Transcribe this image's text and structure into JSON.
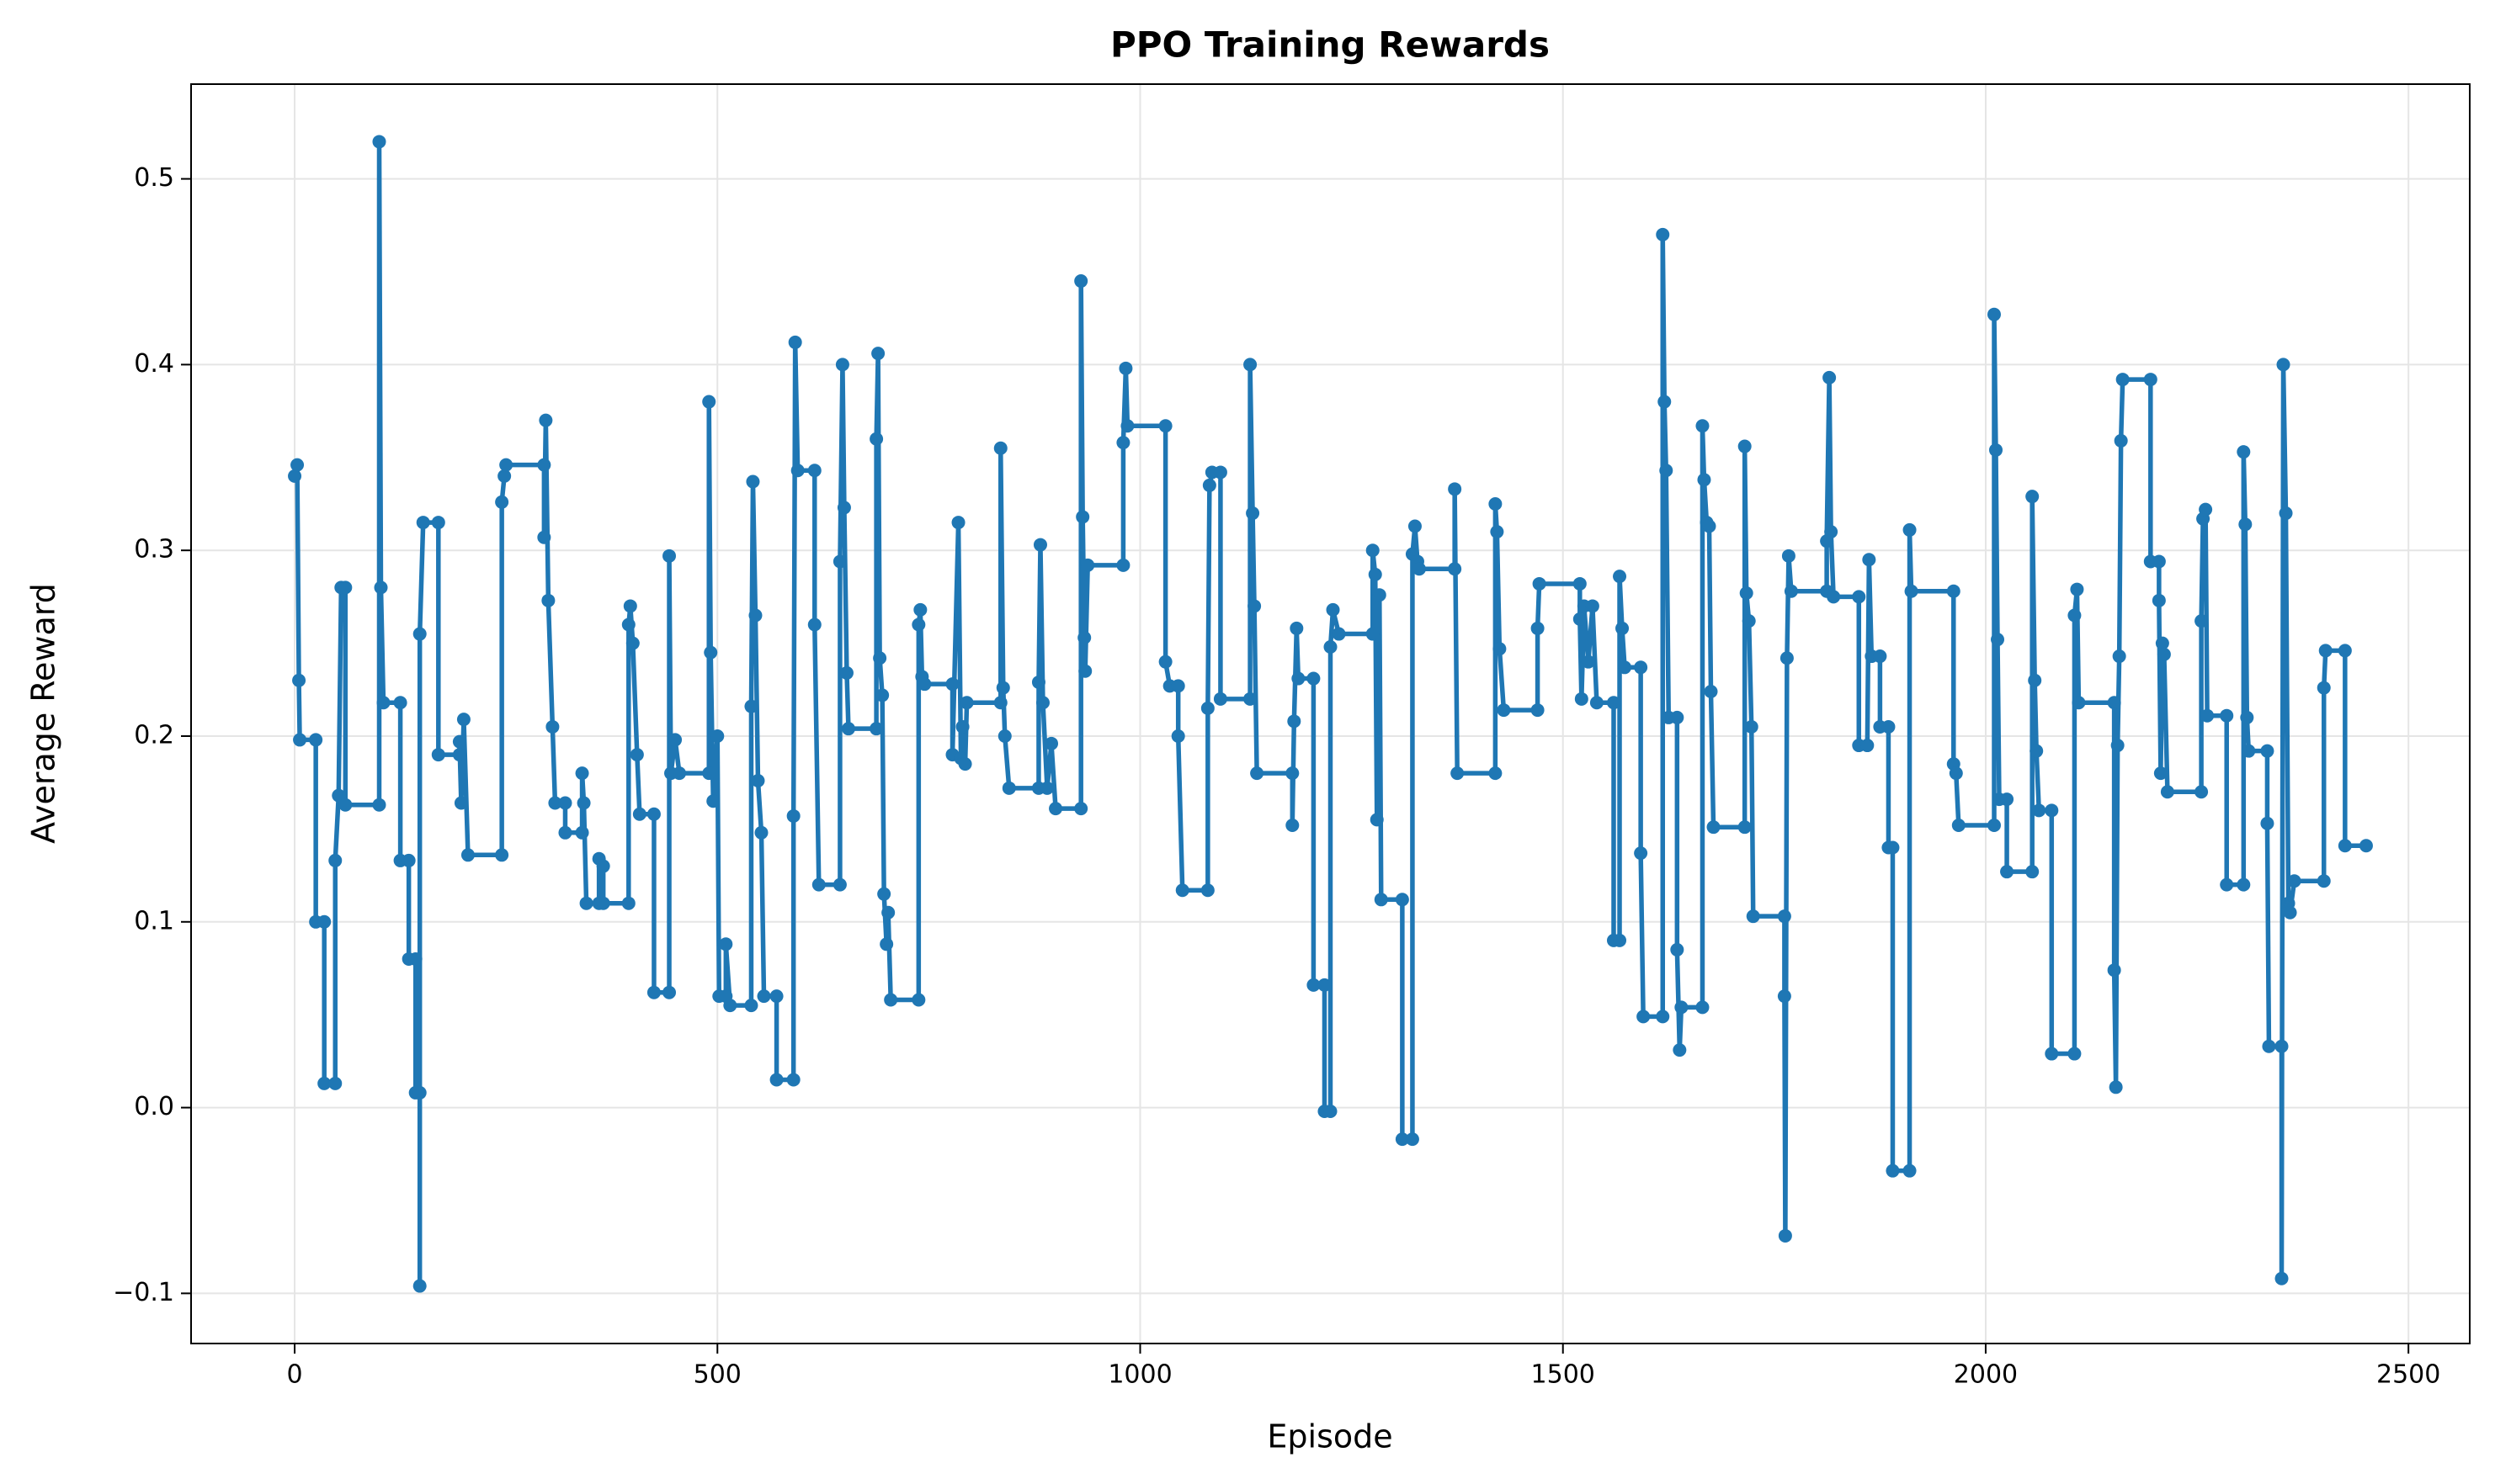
{
  "chart_data": {
    "type": "line",
    "title": "PPO Training Rewards",
    "x_label": "Episode",
    "y_label": "Average Reward",
    "color": "#1f77b4",
    "grid": true,
    "markers": true,
    "xlim": [
      -122.5,
      2572.5
    ],
    "xticks": [
      0,
      500,
      1000,
      1500,
      2000,
      2500
    ],
    "ylim": [
      -0.127,
      0.551
    ],
    "yticks": [
      {
        "value": -0.1,
        "label": "−0.1"
      },
      {
        "value": 0,
        "label": "0.0"
      },
      0.1,
      0.2,
      0.3,
      0.4,
      0.5
    ],
    "x": [
      0,
      3,
      5,
      6,
      25,
      25,
      35,
      35,
      48,
      48,
      52,
      55,
      60,
      60,
      100,
      100,
      102,
      105,
      125,
      125,
      135,
      135,
      143,
      143,
      148,
      148,
      148,
      152,
      170,
      170,
      195,
      195,
      197,
      200,
      205,
      245,
      245,
      248,
      250,
      295,
      295,
      297,
      300,
      305,
      308,
      320,
      320,
      340,
      340,
      342,
      345,
      360,
      360,
      365,
      365,
      395,
      395,
      397,
      400,
      405,
      408,
      425,
      425,
      443,
      443,
      445,
      450,
      455,
      490,
      490,
      492,
      495,
      500,
      502,
      510,
      510,
      515,
      540,
      540,
      542,
      545,
      548,
      552,
      555,
      570,
      570,
      590,
      590,
      592,
      595,
      615,
      615,
      620,
      645,
      645,
      648,
      650,
      653,
      655,
      688,
      688,
      690,
      692,
      695,
      697,
      700,
      702,
      705,
      738,
      738,
      740,
      742,
      745,
      778,
      778,
      785,
      788,
      790,
      793,
      795,
      835,
      835,
      838,
      840,
      845,
      880,
      880,
      882,
      885,
      890,
      895,
      900,
      930,
      930,
      932,
      934,
      935,
      938,
      980,
      980,
      983,
      985,
      1030,
      1030,
      1035,
      1045,
      1045,
      1050,
      1080,
      1080,
      1082,
      1085,
      1095,
      1095,
      1130,
      1130,
      1133,
      1135,
      1138,
      1180,
      1180,
      1182,
      1185,
      1187,
      1205,
      1205,
      1218,
      1218,
      1225,
      1225,
      1228,
      1235,
      1275,
      1275,
      1278,
      1280,
      1283,
      1285,
      1310,
      1310,
      1322,
      1322,
      1325,
      1328,
      1330,
      1372,
      1372,
      1375,
      1420,
      1420,
      1422,
      1425,
      1430,
      1470,
      1470,
      1472,
      1520,
      1520,
      1522,
      1525,
      1530,
      1535,
      1540,
      1560,
      1560,
      1567,
      1567,
      1570,
      1573,
      1592,
      1592,
      1595,
      1618,
      1618,
      1620,
      1622,
      1625,
      1635,
      1635,
      1638,
      1640,
      1665,
      1665,
      1667,
      1670,
      1673,
      1675,
      1678,
      1715,
      1715,
      1717,
      1720,
      1723,
      1725,
      1762,
      1762,
      1763,
      1765,
      1767,
      1770,
      1812,
      1812,
      1815,
      1817,
      1820,
      1850,
      1850,
      1860,
      1862,
      1865,
      1875,
      1875,
      1885,
      1885,
      1890,
      1890,
      1910,
      1910,
      1912,
      1962,
      1962,
      1965,
      1968,
      2010,
      2010,
      2012,
      2014,
      2016,
      2025,
      2025,
      2055,
      2055,
      2058,
      2060,
      2063,
      2078,
      2078,
      2105,
      2105,
      2108,
      2110,
      2152,
      2152,
      2154,
      2156,
      2158,
      2160,
      2162,
      2195,
      2195,
      2205,
      2205,
      2207,
      2209,
      2211,
      2215,
      2255,
      2255,
      2257,
      2260,
      2262,
      2285,
      2285,
      2305,
      2305,
      2307,
      2309,
      2311,
      2333,
      2333,
      2335,
      2350,
      2350,
      2352,
      2355,
      2358,
      2360,
      2365,
      2400,
      2400,
      2402,
      2425,
      2425,
      2450
    ],
    "values": [
      0.34,
      0.346,
      0.23,
      0.198,
      0.198,
      0.1,
      0.1,
      0.013,
      0.013,
      0.133,
      0.168,
      0.28,
      0.28,
      0.163,
      0.163,
      0.52,
      0.28,
      0.218,
      0.218,
      0.133,
      0.133,
      0.08,
      0.08,
      0.008,
      0.008,
      -0.096,
      0.255,
      0.315,
      0.315,
      0.19,
      0.19,
      0.197,
      0.164,
      0.209,
      0.136,
      0.136,
      0.326,
      0.34,
      0.346,
      0.346,
      0.307,
      0.37,
      0.273,
      0.205,
      0.164,
      0.164,
      0.148,
      0.148,
      0.18,
      0.164,
      0.11,
      0.11,
      0.134,
      0.13,
      0.11,
      0.11,
      0.26,
      0.27,
      0.25,
      0.19,
      0.158,
      0.158,
      0.062,
      0.062,
      0.297,
      0.18,
      0.198,
      0.18,
      0.18,
      0.38,
      0.245,
      0.165,
      0.2,
      0.06,
      0.06,
      0.088,
      0.055,
      0.055,
      0.216,
      0.337,
      0.265,
      0.176,
      0.148,
      0.06,
      0.06,
      0.015,
      0.015,
      0.157,
      0.412,
      0.343,
      0.343,
      0.26,
      0.12,
      0.12,
      0.294,
      0.4,
      0.323,
      0.234,
      0.204,
      0.204,
      0.36,
      0.406,
      0.242,
      0.222,
      0.115,
      0.088,
      0.105,
      0.058,
      0.058,
      0.26,
      0.268,
      0.232,
      0.228,
      0.228,
      0.19,
      0.315,
      0.188,
      0.205,
      0.185,
      0.218,
      0.218,
      0.355,
      0.226,
      0.2,
      0.172,
      0.172,
      0.229,
      0.303,
      0.218,
      0.172,
      0.196,
      0.161,
      0.161,
      0.445,
      0.318,
      0.253,
      0.235,
      0.292,
      0.292,
      0.358,
      0.398,
      0.367,
      0.367,
      0.24,
      0.227,
      0.227,
      0.2,
      0.117,
      0.117,
      0.215,
      0.335,
      0.342,
      0.342,
      0.22,
      0.22,
      0.4,
      0.32,
      0.27,
      0.18,
      0.18,
      0.152,
      0.208,
      0.258,
      0.231,
      0.231,
      0.066,
      0.066,
      -0.002,
      -0.002,
      0.248,
      0.268,
      0.255,
      0.255,
      0.3,
      0.287,
      0.155,
      0.276,
      0.112,
      0.112,
      -0.017,
      -0.017,
      0.298,
      0.313,
      0.294,
      0.29,
      0.29,
      0.333,
      0.18,
      0.18,
      0.325,
      0.31,
      0.247,
      0.214,
      0.214,
      0.258,
      0.282,
      0.282,
      0.263,
      0.22,
      0.27,
      0.24,
      0.27,
      0.218,
      0.218,
      0.09,
      0.09,
      0.286,
      0.258,
      0.237,
      0.237,
      0.137,
      0.049,
      0.049,
      0.47,
      0.38,
      0.343,
      0.21,
      0.21,
      0.085,
      0.031,
      0.054,
      0.054,
      0.367,
      0.338,
      0.315,
      0.313,
      0.224,
      0.151,
      0.151,
      0.356,
      0.277,
      0.262,
      0.205,
      0.103,
      0.103,
      0.06,
      -0.069,
      0.242,
      0.297,
      0.278,
      0.278,
      0.305,
      0.393,
      0.31,
      0.275,
      0.275,
      0.195,
      0.195,
      0.295,
      0.243,
      0.243,
      0.205,
      0.205,
      0.14,
      0.14,
      -0.034,
      -0.034,
      0.311,
      0.278,
      0.278,
      0.185,
      0.18,
      0.152,
      0.152,
      0.427,
      0.354,
      0.252,
      0.166,
      0.166,
      0.127,
      0.127,
      0.329,
      0.23,
      0.192,
      0.16,
      0.16,
      0.029,
      0.029,
      0.265,
      0.279,
      0.218,
      0.218,
      0.074,
      0.011,
      0.195,
      0.243,
      0.359,
      0.392,
      0.392,
      0.294,
      0.294,
      0.273,
      0.18,
      0.25,
      0.244,
      0.17,
      0.17,
      0.262,
      0.317,
      0.322,
      0.211,
      0.211,
      0.12,
      0.12,
      0.353,
      0.314,
      0.21,
      0.192,
      0.192,
      0.153,
      0.033,
      0.033,
      -0.092,
      0.4,
      0.32,
      0.11,
      0.105,
      0.122,
      0.122,
      0.226,
      0.246,
      0.246,
      0.141,
      0.141
    ]
  }
}
